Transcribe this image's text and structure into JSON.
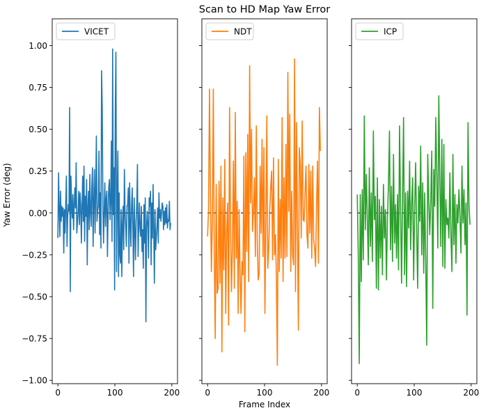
{
  "figure": {
    "title": "Scan to HD Map Yaw Error",
    "xlabel": "Frame Index",
    "ylabel": "Yaw Error (deg)"
  },
  "chart_data": {
    "type": "line",
    "title": "Scan to HD Map Yaw Error",
    "xlabel": "Frame Index",
    "ylabel": "Yaw Error (deg)",
    "sharey": true,
    "ylim": [
      -1.02,
      1.16
    ],
    "xlim": [
      -10,
      210
    ],
    "yticks": [
      -1.0,
      -0.75,
      -0.5,
      -0.25,
      0.0,
      0.25,
      0.5,
      0.75,
      1.0
    ],
    "ytick_labels": [
      "−1.00",
      "−0.75",
      "−0.50",
      "−0.25",
      "0.00",
      "0.25",
      "0.50",
      "0.75",
      "1.00"
    ],
    "xticks": [
      0,
      100,
      200
    ],
    "xtick_labels": [
      "0",
      "100",
      "200"
    ],
    "grid": false,
    "legend_placement": "upper-left",
    "reference_line": {
      "y": 0,
      "style": "dashed",
      "color": "#000000"
    },
    "panels": [
      {
        "name": "VICET",
        "color": "#1f77b4",
        "values": [
          -0.15,
          0.24,
          0.02,
          -0.14,
          0.13,
          -0.05,
          0.04,
          -0.02,
          0.03,
          -0.24,
          0.02,
          -0.12,
          0.05,
          0.22,
          -0.2,
          -0.02,
          0.05,
          0.01,
          0.63,
          -0.47,
          0.22,
          0.06,
          -0.03,
          0.11,
          -0.1,
          0.04,
          0.15,
          0.03,
          0.3,
          -0.12,
          -0.06,
          0.01,
          0.13,
          -0.07,
          0.12,
          0.05,
          -0.18,
          0.03,
          0.22,
          -0.05,
          0.28,
          -0.17,
          0.1,
          -0.02,
          0.2,
          -0.31,
          0.03,
          0.13,
          -0.1,
          0.23,
          0.01,
          -0.08,
          0.16,
          0.27,
          -0.2,
          0.06,
          0.26,
          -0.12,
          0.12,
          0.46,
          -0.05,
          0.02,
          0.04,
          0.37,
          -0.13,
          0.12,
          -0.21,
          0.85,
          0.63,
          0.05,
          -0.18,
          0.01,
          0.18,
          -0.08,
          0.08,
          0.13,
          -0.26,
          0.0,
          0.15,
          0.2,
          -0.04,
          0.07,
          0.43,
          -0.17,
          0.98,
          -0.01,
          0.27,
          -0.46,
          0.61,
          0.96,
          -0.35,
          0.12,
          0.37,
          -0.38,
          0.12,
          -0.25,
          -0.3,
          0.02,
          -0.38,
          -0.07,
          0.04,
          -0.22,
          0.26,
          0.0,
          -0.08,
          -0.2,
          0.04,
          0.05,
          0.15,
          -0.3,
          0.18,
          -0.06,
          -0.2,
          0.04,
          0.15,
          -0.08,
          -0.38,
          0.09,
          -0.1,
          -0.28,
          -0.05,
          0.05,
          0.29,
          -0.26,
          -0.07,
          0.06,
          -0.1,
          -0.14,
          0.04,
          -0.23,
          -0.1,
          -0.33,
          0.05,
          -0.18,
          0.09,
          -0.65,
          -0.09,
          0.01,
          -0.07,
          -0.27,
          0.09,
          0.04,
          0.13,
          -0.31,
          0.06,
          -0.15,
          0.17,
          -0.1,
          -0.42,
          0.02,
          -0.22,
          -0.15,
          -0.08,
          0.03,
          -0.18,
          0.12,
          -0.03,
          0.02,
          -0.05,
          0.0,
          0.06,
          0.04,
          -0.1,
          0.01,
          -0.07,
          0.03,
          -0.06,
          0.05,
          -0.09,
          -0.04,
          -0.05,
          0.07,
          -0.1,
          -0.06
        ]
      },
      {
        "name": "NDT",
        "color": "#ff7f0e",
        "values": [
          -0.14,
          0.02,
          0.74,
          0.1,
          -0.35,
          -0.05,
          0.74,
          -0.24,
          -0.75,
          0.17,
          -0.48,
          -0.45,
          0.19,
          -0.42,
          0.28,
          -0.83,
          0.09,
          -0.34,
          0.32,
          -0.6,
          -0.11,
          0.06,
          -0.67,
          0.63,
          -0.05,
          -0.47,
          -0.21,
          0.31,
          -0.45,
          0.6,
          -0.27,
          0.07,
          -0.6,
          0.02,
          -0.37,
          -0.6,
          -0.29,
          -0.37,
          0.34,
          -0.71,
          0.36,
          -0.23,
          0.47,
          -0.41,
          0.88,
          0.06,
          0.5,
          -0.11,
          0.01,
          0.21,
          -0.26,
          0.52,
          -0.17,
          -0.4,
          -0.36,
          0.28,
          -0.12,
          0.44,
          -0.26,
          0.39,
          -0.6,
          -0.04,
          0.58,
          -0.33,
          -0.21,
          0.01,
          0.15,
          0.25,
          -0.28,
          0.33,
          -0.25,
          -0.13,
          -0.38,
          -0.91,
          0.32,
          -0.35,
          0.08,
          -0.27,
          0.57,
          -0.41,
          0.21,
          -0.27,
          0.41,
          -0.26,
          0.84,
          0.01,
          0.59,
          -0.35,
          0.13,
          -0.25,
          -0.31,
          0.92,
          -0.47,
          0.54,
          -0.08,
          -0.7,
          0.39,
          0.29,
          -0.15,
          0.55,
          -0.04,
          -0.05,
          0.13,
          0.28,
          -0.13,
          -0.21,
          0.29,
          -0.12,
          0.25,
          -0.27,
          0.28,
          -0.16,
          -0.21,
          -0.32,
          0.04,
          0.31,
          -0.3,
          0.63,
          0.37
        ]
      },
      {
        "name": "ICP",
        "color": "#2ca02c",
        "values": [
          0.11,
          -0.25,
          -0.9,
          0.11,
          -0.41,
          0.14,
          -0.28,
          0.58,
          -0.1,
          0.23,
          -0.03,
          -0.31,
          0.27,
          -0.2,
          0.12,
          -0.29,
          0.49,
          -0.04,
          0.1,
          -0.45,
          0.21,
          -0.46,
          0.08,
          -0.27,
          0.04,
          -0.37,
          0.17,
          -0.15,
          0.02,
          -0.4,
          -0.03,
          0.17,
          0.49,
          -0.22,
          0.16,
          -0.29,
          0.35,
          -0.18,
          0.05,
          -0.27,
          0.11,
          -0.34,
          0.52,
          0.03,
          -0.42,
          0.09,
          0.57,
          -0.37,
          0.12,
          -0.44,
          0.13,
          -0.09,
          0.31,
          -0.22,
          0.05,
          0.21,
          -0.4,
          0.03,
          0.3,
          -0.11,
          -0.45,
          0.16,
          -0.05,
          0.4,
          -0.25,
          0.18,
          -0.36,
          0.12,
          -0.29,
          -0.79,
          0.35,
          0.08,
          -0.13,
          0.07,
          0.37,
          -0.57,
          0.26,
          0.04,
          0.57,
          0.23,
          -0.21,
          0.7,
          0.21,
          -0.2,
          0.44,
          -0.32,
          0.41,
          -0.33,
          0.08,
          -0.07,
          -0.03,
          -0.15,
          0.24,
          -0.12,
          -0.35,
          0.35,
          -0.19,
          0.11,
          -0.3,
          0.05,
          -0.06,
          0.14,
          -0.02,
          -0.24,
          0.28,
          -0.06,
          0.14,
          -0.19,
          0.06,
          -0.61,
          0.54,
          0.04,
          -0.07
        ]
      }
    ]
  }
}
